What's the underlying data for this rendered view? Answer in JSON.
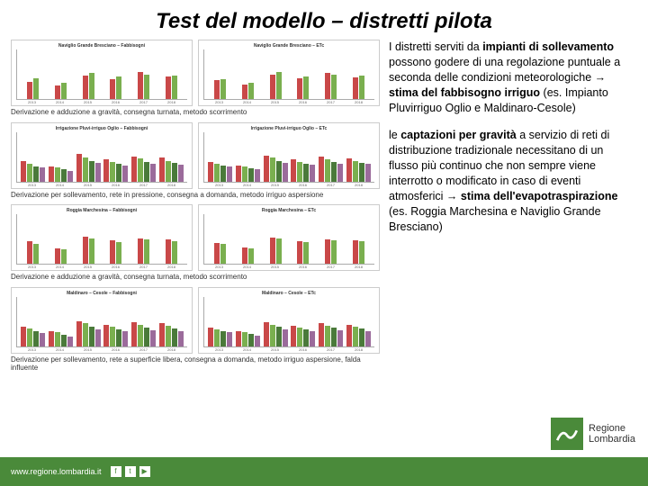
{
  "title": "Test del modello – distretti pilota",
  "captions": {
    "row1": "Derivazione e adduzione a gravità, consegna turnata, metodo scorrimento",
    "row2": "Derivazione per sollevamento, rete in pressione, consegna a domanda, metodo irriguo aspersione",
    "row3": "Derivazione e adduzione a gravità, consegna turnata, metodo scorrimento",
    "row4": "Derivazione per sollevamento, rete a superficie libera, consegna a domanda, metodo irriguo aspersione, falda influente"
  },
  "chart_titles": {
    "r1l": "Naviglio Grande Bresciano – Fabbisogni",
    "r1r": "Naviglio Grande Bresciano – ETc",
    "r2l": "Irrigazione Pluvi-irriguo Oglio – Fabbisogni",
    "r2r": "Irrigazione Pluvi-irriguo Oglio – ETc",
    "r3l": "Roggia Marchesina – Fabbisogni",
    "r3r": "Roggia Marchesina – ETc",
    "r4l": "Maldinaro – Cesole – Fabbisogni",
    "r4r": "Maldinaro – Cesole – ETc"
  },
  "years": [
    "2013",
    "2014",
    "2015",
    "2016",
    "2017",
    "2018"
  ],
  "colors": {
    "a": "#c94848",
    "b": "#7aaf4f",
    "c": "#4a7a3a",
    "d": "#9b6b9b"
  },
  "charts": {
    "r1l": {
      "series": 2,
      "vals": [
        [
          35,
          42
        ],
        [
          28,
          32
        ],
        [
          48,
          52
        ],
        [
          40,
          45
        ],
        [
          55,
          50
        ],
        [
          45,
          48
        ]
      ]
    },
    "r1r": {
      "series": 2,
      "vals": [
        [
          38,
          40
        ],
        [
          30,
          33
        ],
        [
          50,
          54
        ],
        [
          42,
          46
        ],
        [
          52,
          50
        ],
        [
          44,
          47
        ]
      ]
    },
    "r2l": {
      "series": 4,
      "vals": [
        [
          42,
          35,
          30,
          28
        ],
        [
          30,
          28,
          25,
          22
        ],
        [
          55,
          48,
          42,
          38
        ],
        [
          45,
          40,
          36,
          32
        ],
        [
          50,
          46,
          40,
          36
        ],
        [
          48,
          42,
          38,
          34
        ]
      ]
    },
    "r2r": {
      "series": 4,
      "vals": [
        [
          40,
          36,
          32,
          30
        ],
        [
          32,
          30,
          26,
          24
        ],
        [
          52,
          48,
          42,
          38
        ],
        [
          44,
          40,
          36,
          34
        ],
        [
          50,
          44,
          40,
          36
        ],
        [
          46,
          42,
          38,
          35
        ]
      ]
    },
    "r3l": {
      "series": 2,
      "vals": [
        [
          45,
          40
        ],
        [
          32,
          30
        ],
        [
          55,
          52
        ],
        [
          48,
          44
        ],
        [
          52,
          50
        ],
        [
          50,
          46
        ]
      ]
    },
    "r3r": {
      "series": 2,
      "vals": [
        [
          42,
          40
        ],
        [
          34,
          32
        ],
        [
          54,
          52
        ],
        [
          46,
          44
        ],
        [
          50,
          48
        ],
        [
          48,
          46
        ]
      ]
    },
    "r4l": {
      "series": 4,
      "vals": [
        [
          40,
          36,
          30,
          26
        ],
        [
          30,
          28,
          24,
          20
        ],
        [
          50,
          46,
          40,
          34
        ],
        [
          44,
          40,
          35,
          30
        ],
        [
          48,
          44,
          38,
          32
        ],
        [
          46,
          42,
          36,
          30
        ]
      ]
    },
    "r4r": {
      "series": 4,
      "vals": [
        [
          38,
          35,
          30,
          28
        ],
        [
          30,
          28,
          25,
          22
        ],
        [
          48,
          44,
          40,
          35
        ],
        [
          42,
          38,
          34,
          30
        ],
        [
          46,
          42,
          38,
          32
        ],
        [
          44,
          40,
          36,
          30
        ]
      ]
    }
  },
  "para1": {
    "t1": "I distretti serviti da ",
    "b1": "impianti di sollevamento",
    "t2": " possono godere di una regolazione puntuale a seconda delle condizioni meteorologiche ",
    "b2": "stima del fabbisogno irriguo",
    "t3": " (es. Impianto Pluvirriguo Oglio e Maldinaro-Cesole)"
  },
  "para2": {
    "t1": "le ",
    "b1": "captazioni per gravità",
    "t2": " a servizio di reti di distribuzione tradizionale necessitano di un flusso più continuo che non sempre viene interrotto o modificato in caso di eventi atmosferici ",
    "b2": "stima dell'evapotraspirazione",
    "t3": " (es. Roggia Marchesina e Naviglio Grande Bresciano)"
  },
  "footer": {
    "url": "www.regione.lombardia.it"
  },
  "logo": {
    "l1": "Regione",
    "l2": "Lombardia"
  }
}
